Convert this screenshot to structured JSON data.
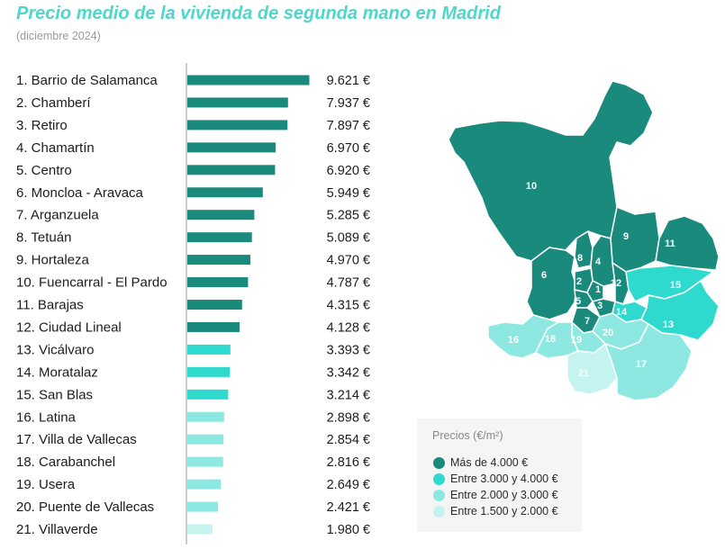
{
  "header": {
    "title": "Precio medio de la vivienda de segunda mano en Madrid",
    "subtitle": "(diciembre 2024)"
  },
  "colors": {
    "tier1": "#1a8a7d",
    "tier2": "#2ed9cd",
    "tier3": "#8de8e2",
    "tier4": "#c4f3f0",
    "title": "#4fd6cc"
  },
  "chart_data": {
    "type": "bar",
    "orientation": "horizontal",
    "title": "Precio medio de la vivienda de segunda mano en Madrid",
    "subtitle": "(diciembre 2024)",
    "categories": [
      "1. Barrio de Salamanca",
      "2. Chamberí",
      "3. Retiro",
      "4. Chamartín",
      "5. Centro",
      "6. Moncloa - Aravaca",
      "7. Arganzuela",
      "8. Tetuán",
      "9. Hortaleza",
      "10. Fuencarral - El Pardo",
      "11. Barajas",
      "12. Ciudad Lineal",
      "13. Vicálvaro",
      "14. Moratalaz",
      "15. San Blas",
      "16. Latina",
      "17. Villa de Vallecas",
      "18. Carabanchel",
      "19. Usera",
      "20. Puente de Vallecas",
      "21. Villaverde"
    ],
    "values": [
      9621,
      7937,
      7897,
      6970,
      6920,
      5949,
      5285,
      5089,
      4970,
      4787,
      4315,
      4128,
      3393,
      3342,
      3214,
      2898,
      2854,
      2816,
      2649,
      2421,
      1980
    ],
    "value_labels": [
      "9.621 €",
      "7.937 €",
      "7.897 €",
      "6.970 €",
      "6.920 €",
      "5.949 €",
      "5.285 €",
      "5.089 €",
      "4.970 €",
      "4.787 €",
      "4.315 €",
      "4.128 €",
      "3.393 €",
      "3.342 €",
      "3.214 €",
      "2.898 €",
      "2.854 €",
      "2.816 €",
      "2.649 €",
      "2.421 €",
      "1.980 €"
    ],
    "tiers": [
      1,
      1,
      1,
      1,
      1,
      1,
      1,
      1,
      1,
      1,
      1,
      1,
      2,
      2,
      2,
      3,
      3,
      3,
      3,
      3,
      4
    ],
    "xlim": [
      0,
      10000
    ],
    "grid": false,
    "legend": "bottom-right"
  },
  "map": {
    "district_tiers": {
      "1": 1,
      "2": 1,
      "3": 1,
      "4": 1,
      "5": 1,
      "6": 1,
      "7": 1,
      "8": 1,
      "9": 1,
      "10": 1,
      "11": 1,
      "12": 1,
      "13": 2,
      "14": 2,
      "15": 2,
      "16": 3,
      "17": 3,
      "18": 3,
      "19": 3,
      "20": 3,
      "21": 4
    }
  },
  "legend": {
    "title": "Precios (€/m²)",
    "items": [
      {
        "label": "Más de 4.000 €",
        "color": "#1a8a7d"
      },
      {
        "label": "Entre 3.000 y 4.000 €",
        "color": "#2ed9cd"
      },
      {
        "label": "Entre 2.000 y 3.000 €",
        "color": "#8de8e2"
      },
      {
        "label": "Entre 1.500 y 2.000 €",
        "color": "#c4f3f0"
      }
    ]
  }
}
